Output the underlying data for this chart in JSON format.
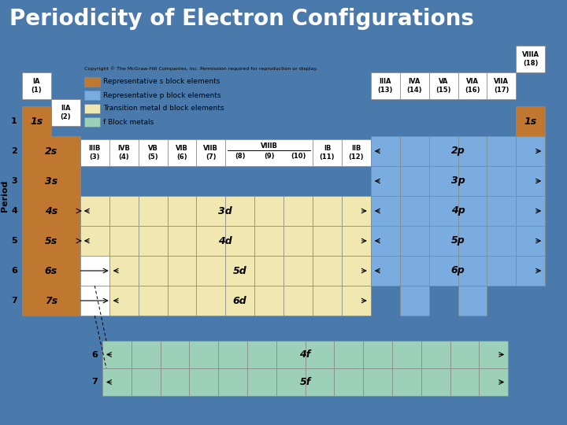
{
  "title": "Periodicity of Electron Configurations",
  "title_bg": "#4a7aab",
  "title_color": "white",
  "title_fontsize": 20,
  "bg_color": "#4a7aab",
  "color_s": "#c07830",
  "color_p": "#7aace0",
  "color_d": "#f0e8b0",
  "color_f": "#9dd0b8",
  "color_blank": "white",
  "color_edge": "#888888",
  "legend_items": [
    {
      "label": "Representative s block elements",
      "color": "#c07830"
    },
    {
      "label": "Representative p block elements",
      "color": "#7aace0"
    },
    {
      "label": "Transition metal d block elements",
      "color": "#f0e8b0"
    },
    {
      "label": "f Block metals",
      "color": "#9dd0b8"
    }
  ],
  "copyright_text": "Copyright © The McGraw-Hill Companies, Inc. Permission required for reproduction or display."
}
